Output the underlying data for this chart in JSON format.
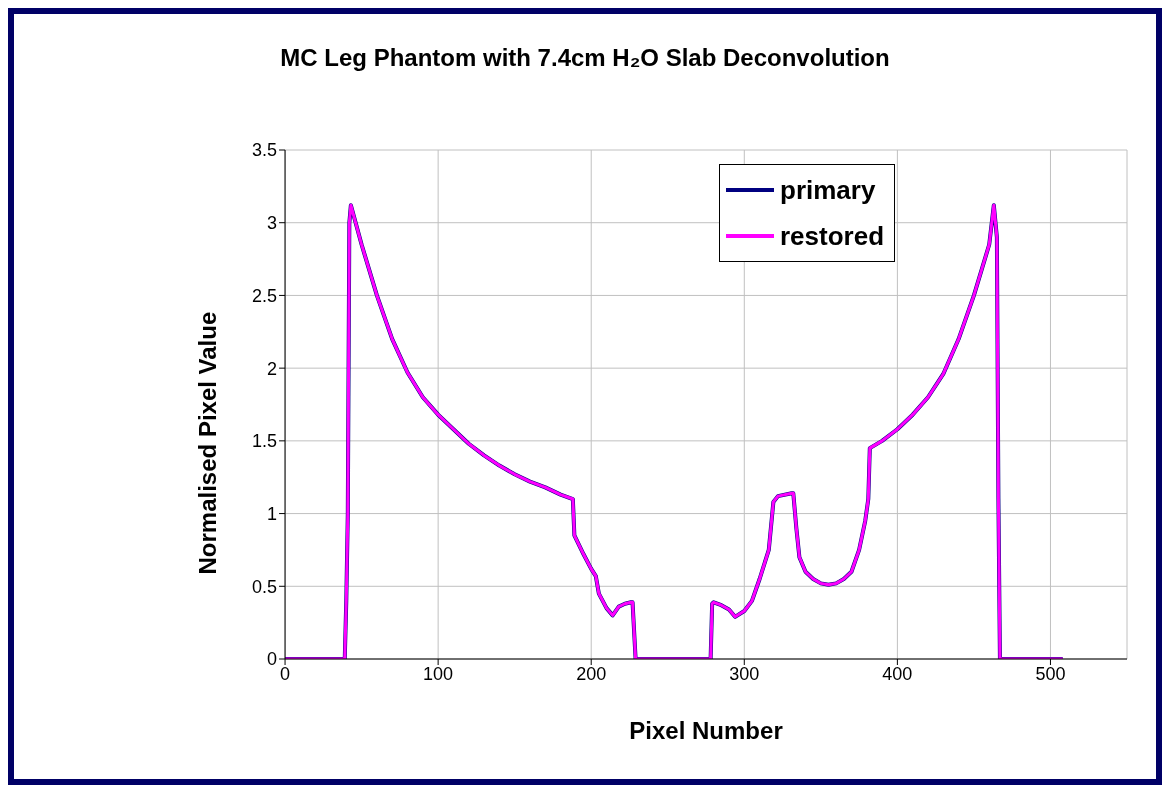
{
  "chart_data": {
    "type": "line",
    "title": "MC Leg Phantom with 7.4cm H₂O Slab Deconvolution",
    "xlabel": "Pixel Number",
    "ylabel": "Normalised Pixel Value",
    "x": [
      0,
      39,
      40,
      41,
      42,
      43,
      50,
      60,
      70,
      80,
      90,
      100,
      110,
      120,
      130,
      140,
      150,
      160,
      170,
      180,
      188,
      189,
      195,
      200,
      203,
      205,
      210,
      214,
      218,
      222,
      226,
      227,
      229,
      278,
      279,
      280,
      285,
      290,
      294,
      300,
      305,
      310,
      316,
      319,
      322,
      331,
      332,
      334,
      336,
      340,
      345,
      350,
      355,
      360,
      365,
      370,
      375,
      379,
      381,
      382,
      390,
      400,
      410,
      420,
      430,
      440,
      450,
      460,
      463,
      465,
      466,
      467,
      508
    ],
    "series": [
      {
        "name": "primary",
        "color": "#000080",
        "values": [
          0,
          0,
          0.4,
          1.0,
          3.0,
          3.12,
          2.85,
          2.5,
          2.2,
          1.97,
          1.8,
          1.68,
          1.58,
          1.48,
          1.4,
          1.33,
          1.27,
          1.22,
          1.18,
          1.13,
          1.1,
          0.85,
          0.72,
          0.62,
          0.57,
          0.45,
          0.35,
          0.3,
          0.36,
          0.38,
          0.39,
          0.39,
          0,
          0,
          0.38,
          0.39,
          0.37,
          0.34,
          0.29,
          0.33,
          0.4,
          0.55,
          0.75,
          1.08,
          1.12,
          1.14,
          1.14,
          0.9,
          0.7,
          0.6,
          0.55,
          0.52,
          0.51,
          0.52,
          0.55,
          0.6,
          0.75,
          0.95,
          1.1,
          1.45,
          1.5,
          1.58,
          1.68,
          1.8,
          1.96,
          2.2,
          2.5,
          2.85,
          3.12,
          2.9,
          1.1,
          0,
          0
        ]
      },
      {
        "name": "restored",
        "color": "#ff00ff",
        "values": [
          0,
          0,
          0.4,
          1.0,
          3.0,
          3.12,
          2.85,
          2.5,
          2.2,
          1.97,
          1.8,
          1.68,
          1.58,
          1.48,
          1.4,
          1.33,
          1.27,
          1.22,
          1.18,
          1.13,
          1.1,
          0.85,
          0.72,
          0.62,
          0.57,
          0.45,
          0.35,
          0.3,
          0.36,
          0.38,
          0.39,
          0.39,
          0,
          0,
          0.38,
          0.39,
          0.37,
          0.34,
          0.29,
          0.33,
          0.4,
          0.55,
          0.75,
          1.08,
          1.12,
          1.14,
          1.14,
          0.9,
          0.7,
          0.6,
          0.55,
          0.52,
          0.51,
          0.52,
          0.55,
          0.6,
          0.75,
          0.95,
          1.1,
          1.45,
          1.5,
          1.58,
          1.68,
          1.8,
          1.96,
          2.2,
          2.5,
          2.85,
          3.12,
          2.9,
          1.1,
          0,
          0
        ]
      }
    ],
    "xlim": [
      0,
      550
    ],
    "xticks": [
      0,
      100,
      200,
      300,
      400,
      500
    ],
    "ylim": [
      0,
      3.5
    ],
    "yticks": [
      0,
      0.5,
      1,
      1.5,
      2,
      2.5,
      3,
      3.5
    ],
    "grid": true,
    "legend": "top right",
    "marker": "none",
    "line_style": "solid"
  }
}
